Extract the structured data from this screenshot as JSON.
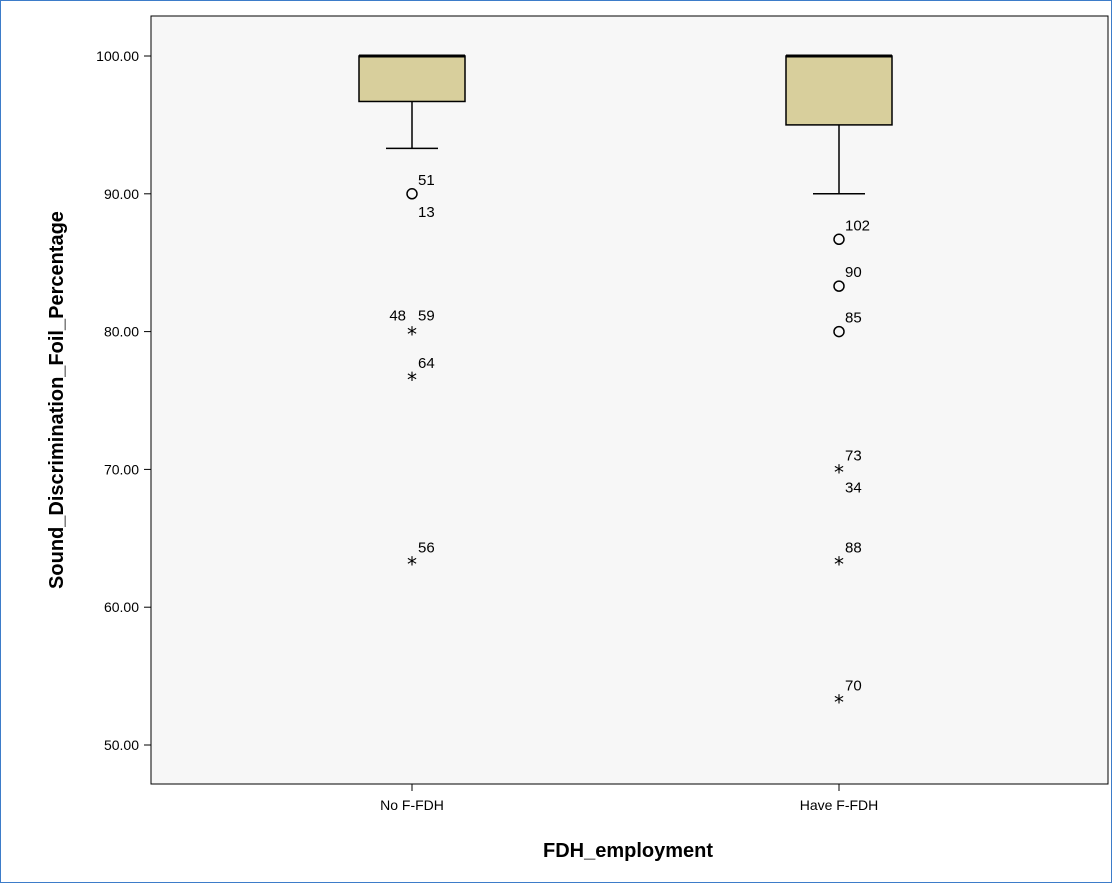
{
  "chart_data": {
    "type": "box",
    "xlabel": "FDH_employment",
    "ylabel": "Sound_Discrimination_Foil_Percentage",
    "ylim": [
      47.2,
      101.5
    ],
    "y_ticks": [
      "50.00",
      "60.00",
      "70.00",
      "80.00",
      "90.00",
      "100.00"
    ],
    "y_tick_values": [
      50,
      60,
      70,
      80,
      90,
      100
    ],
    "box_color": "#d8cf9c",
    "plot_background": "#f7f7f7",
    "grid": false,
    "categories": [
      "No F-FDH",
      "Have F-FDH"
    ],
    "boxes": [
      {
        "category": "No F-FDH",
        "whisker_low": 93.3,
        "q1": 96.7,
        "median": 100.0,
        "q3": 100.0,
        "whisker_high": 100.0,
        "outliers": [
          {
            "value": 90.0,
            "marker": "circle",
            "labels": [
              "51",
              "13"
            ]
          },
          {
            "value": 80.0,
            "marker": "star",
            "labels": [
              "48",
              "59"
            ]
          },
          {
            "value": 76.7,
            "marker": "star",
            "labels": [
              "64"
            ]
          },
          {
            "value": 63.3,
            "marker": "star",
            "labels": [
              "56"
            ]
          }
        ]
      },
      {
        "category": "Have F-FDH",
        "whisker_low": 90.0,
        "q1": 95.0,
        "median": 100.0,
        "q3": 100.0,
        "whisker_high": 100.0,
        "outliers": [
          {
            "value": 86.7,
            "marker": "circle",
            "labels": [
              "102"
            ]
          },
          {
            "value": 83.3,
            "marker": "circle",
            "labels": [
              "90"
            ]
          },
          {
            "value": 80.0,
            "marker": "circle",
            "labels": [
              "85"
            ]
          },
          {
            "value": 70.0,
            "marker": "star",
            "labels": [
              "73",
              "34"
            ]
          },
          {
            "value": 63.3,
            "marker": "star",
            "labels": [
              "88"
            ]
          },
          {
            "value": 53.3,
            "marker": "star",
            "labels": [
              "70"
            ]
          }
        ]
      }
    ]
  }
}
